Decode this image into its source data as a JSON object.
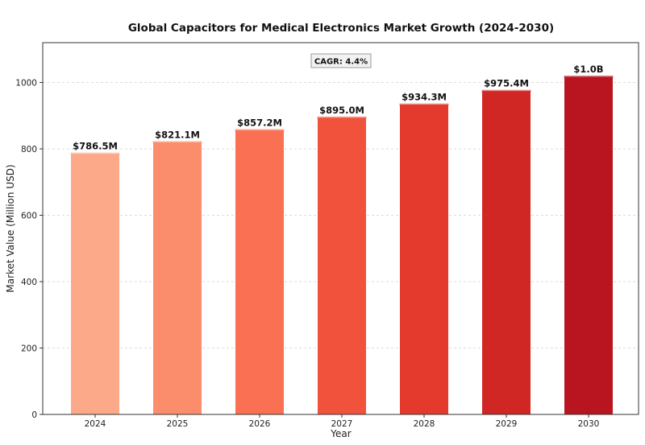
{
  "chart_data": {
    "type": "bar",
    "title": "Global Capacitors for Medical Electronics Market Growth (2024-2030)",
    "xlabel": "Year",
    "ylabel": "Market Value (Million USD)",
    "categories": [
      "2024",
      "2025",
      "2026",
      "2027",
      "2028",
      "2029",
      "2030"
    ],
    "values": [
      786.5,
      821.1,
      857.2,
      895.0,
      934.3,
      975.4,
      1018.3
    ],
    "data_labels": [
      "$786.5M",
      "$821.1M",
      "$857.2M",
      "$895.0M",
      "$934.3M",
      "$975.4M",
      "$1.0B"
    ],
    "ylim": [
      0,
      1120
    ],
    "yticks": [
      0,
      200,
      400,
      600,
      800,
      1000
    ],
    "ytick_labels": [
      "0",
      "200",
      "400",
      "600",
      "800",
      "1000"
    ],
    "grid": "y-dashed",
    "annotation": "CAGR: 4.4%",
    "colors": [
      "#fca98a",
      "#fc8d6c",
      "#f97152",
      "#f0523c",
      "#e43a2e",
      "#d12724",
      "#b91520"
    ]
  }
}
